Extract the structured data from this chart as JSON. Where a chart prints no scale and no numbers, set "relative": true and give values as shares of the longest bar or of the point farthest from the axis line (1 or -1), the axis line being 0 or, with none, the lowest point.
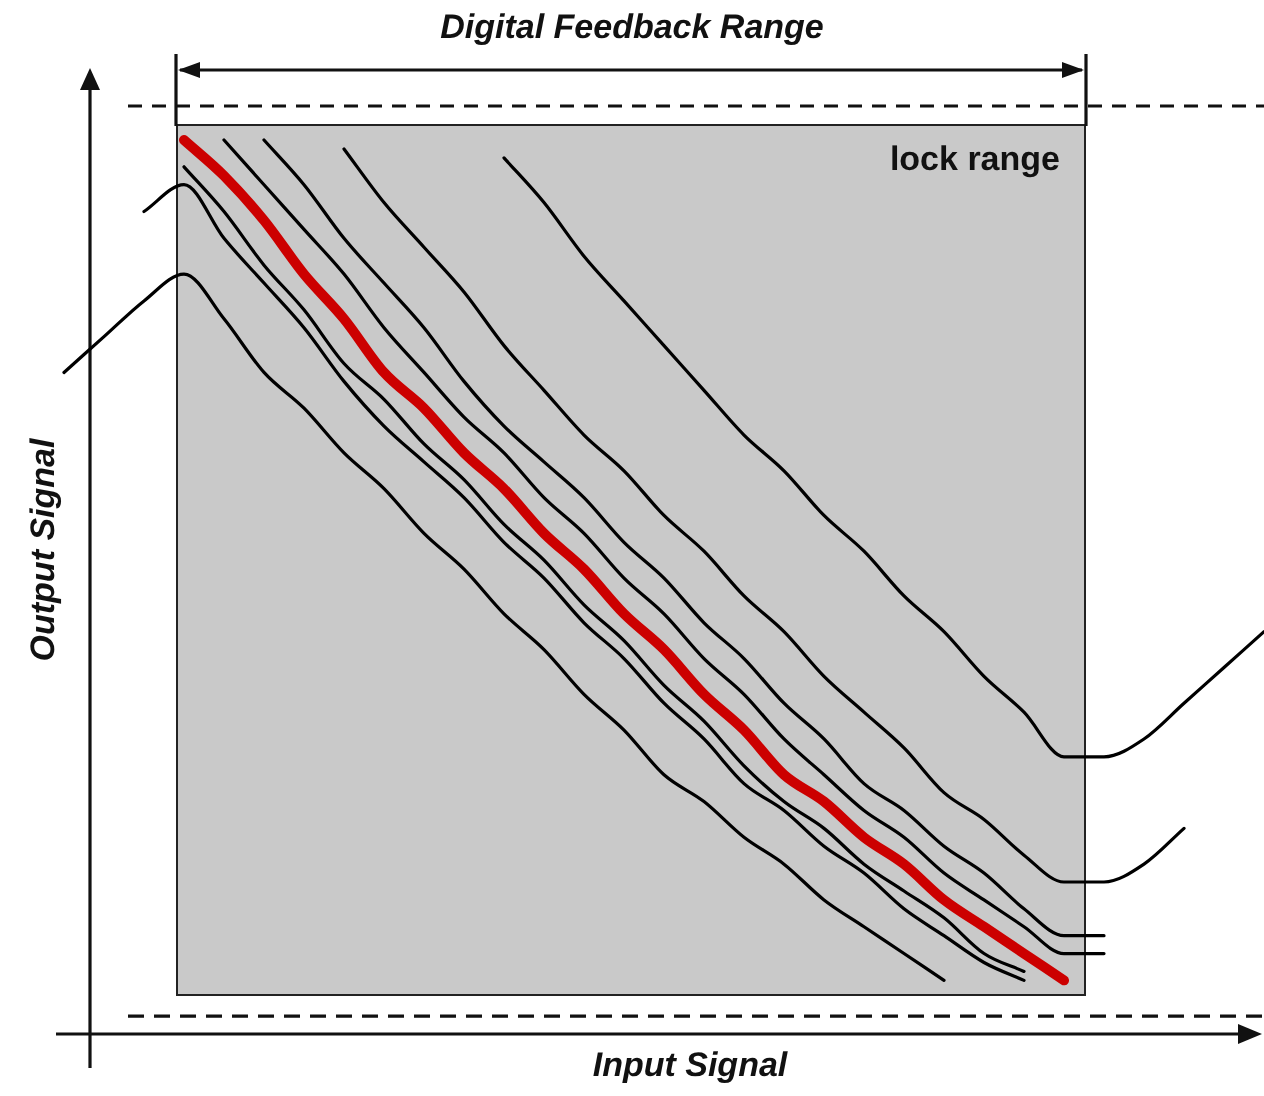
{
  "chart_data": {
    "type": "line",
    "relative": true,
    "tick_labels": false,
    "xlabel": "Input Signal",
    "ylabel": "Output Signal",
    "annotations": [
      "Digital Feedback Range",
      "lock range"
    ],
    "ref_lines": [
      {
        "axis": "y",
        "value": 0.02,
        "color": "#111111",
        "line_style": "dashed"
      }
    ],
    "categories": [
      null,
      null,
      null,
      null,
      null,
      null,
      null,
      null,
      null,
      null,
      null,
      null,
      null,
      null,
      null,
      null,
      null,
      null,
      null,
      null,
      null,
      null,
      null,
      null,
      null,
      null,
      null,
      null,
      null,
      null,
      null
    ],
    "series": [
      {
        "color": "#cc0000",
        "values": [
          null,
          null,
          null,
          1,
          0.96,
          0.91,
          0.85,
          0.8,
          0.74,
          0.7,
          0.65,
          0.61,
          0.56,
          0.52,
          0.47,
          0.43,
          0.38,
          0.34,
          0.29,
          0.26,
          0.22,
          0.19,
          0.15,
          0.12,
          0.09,
          0.06,
          null,
          null,
          null,
          null,
          null
        ]
      },
      {
        "color": "#000000",
        "values": [
          null,
          null,
          null,
          null,
          1,
          0.95,
          0.9,
          0.85,
          0.79,
          0.74,
          0.69,
          0.65,
          0.6,
          0.56,
          0.51,
          0.47,
          0.42,
          0.38,
          0.33,
          0.29,
          0.25,
          0.22,
          0.18,
          0.15,
          0.12,
          0.09,
          0.09,
          null,
          null,
          null,
          null
        ]
      },
      {
        "color": "#000000",
        "values": [
          null,
          null,
          null,
          null,
          null,
          1,
          0.95,
          0.89,
          0.84,
          0.79,
          0.73,
          0.68,
          0.64,
          0.6,
          0.55,
          0.51,
          0.46,
          0.42,
          0.37,
          0.33,
          0.28,
          0.25,
          0.21,
          0.18,
          0.14,
          0.11,
          0.11,
          null,
          null,
          null,
          null
        ]
      },
      {
        "color": "#000000",
        "values": [
          null,
          null,
          null,
          null,
          null,
          null,
          null,
          0.99,
          0.93,
          0.88,
          0.83,
          0.77,
          0.72,
          0.67,
          0.63,
          0.58,
          0.54,
          0.49,
          0.45,
          0.4,
          0.36,
          0.32,
          0.27,
          0.24,
          0.2,
          0.17,
          0.17,
          0.19,
          0.23,
          null,
          null
        ]
      },
      {
        "color": "#000000",
        "values": [
          null,
          null,
          null,
          null,
          null,
          null,
          null,
          null,
          null,
          null,
          null,
          0.98,
          0.93,
          0.87,
          0.82,
          0.77,
          0.72,
          0.67,
          0.63,
          0.58,
          0.54,
          0.49,
          0.45,
          0.4,
          0.36,
          0.31,
          0.31,
          0.33,
          0.37,
          0.41,
          0.45
        ]
      },
      {
        "color": "#000000",
        "values": [
          null,
          null,
          null,
          0.97,
          0.92,
          0.86,
          0.81,
          0.75,
          0.71,
          0.66,
          0.62,
          0.57,
          0.53,
          0.48,
          0.44,
          0.39,
          0.35,
          0.3,
          0.26,
          0.23,
          0.19,
          0.16,
          0.13,
          0.09,
          0.07,
          null,
          null,
          null,
          null,
          null,
          null
        ]
      },
      {
        "color": "#000000",
        "values": [
          null,
          null,
          0.92,
          0.95,
          0.89,
          0.84,
          0.79,
          0.73,
          0.68,
          0.64,
          0.6,
          0.55,
          0.51,
          0.46,
          0.42,
          0.37,
          0.33,
          0.28,
          0.25,
          0.21,
          0.18,
          0.14,
          0.11,
          0.08,
          0.06,
          null,
          null,
          null,
          null,
          null,
          null
        ]
      },
      {
        "color": "#000000",
        "values": [
          0.74,
          0.78,
          0.82,
          0.85,
          0.8,
          0.74,
          0.7,
          0.65,
          0.61,
          0.56,
          0.52,
          0.47,
          0.43,
          0.38,
          0.34,
          0.29,
          0.26,
          0.22,
          0.19,
          0.15,
          0.12,
          0.09,
          0.06,
          null,
          null,
          null,
          null,
          null,
          null,
          null,
          null
        ]
      }
    ]
  }
}
